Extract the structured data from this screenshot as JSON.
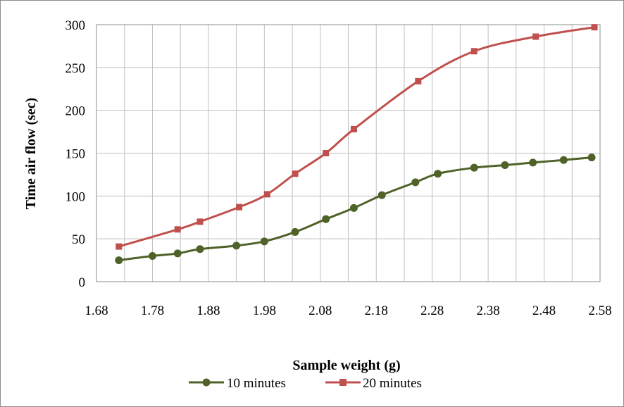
{
  "chart_data": {
    "type": "line",
    "title": "",
    "xlabel": "Sample weight (g)",
    "ylabel": "Time air flow (sec)",
    "xlim": [
      1.68,
      2.58
    ],
    "ylim": [
      0,
      300
    ],
    "x_ticks": [
      "1.68",
      "1.78",
      "1.88",
      "1.98",
      "2.08",
      "2.18",
      "2.28",
      "2.38",
      "2.48",
      "2.58"
    ],
    "y_ticks": [
      "0",
      "50",
      "100",
      "150",
      "200",
      "250",
      "300"
    ],
    "grid": true,
    "minor_x_grid": true,
    "legend_position": "bottom",
    "series": [
      {
        "name": "10 minutes",
        "color": "#4f6228",
        "marker": "circle",
        "x": [
          1.72,
          1.78,
          1.825,
          1.865,
          1.93,
          1.98,
          2.035,
          2.09,
          2.14,
          2.19,
          2.25,
          2.29,
          2.355,
          2.41,
          2.46,
          2.515,
          2.565
        ],
        "y": [
          25,
          30,
          33,
          38,
          42,
          47,
          58,
          73,
          86,
          101,
          116,
          126,
          133,
          136,
          139,
          142,
          145
        ]
      },
      {
        "name": "20 minutes",
        "color": "#c0504d",
        "marker": "square",
        "x": [
          1.72,
          1.825,
          1.865,
          1.935,
          1.985,
          2.035,
          2.09,
          2.14,
          2.255,
          2.355,
          2.465,
          2.57
        ],
        "y": [
          41,
          61,
          70,
          87,
          102,
          126,
          150,
          178,
          234,
          269,
          286,
          297
        ]
      }
    ]
  }
}
